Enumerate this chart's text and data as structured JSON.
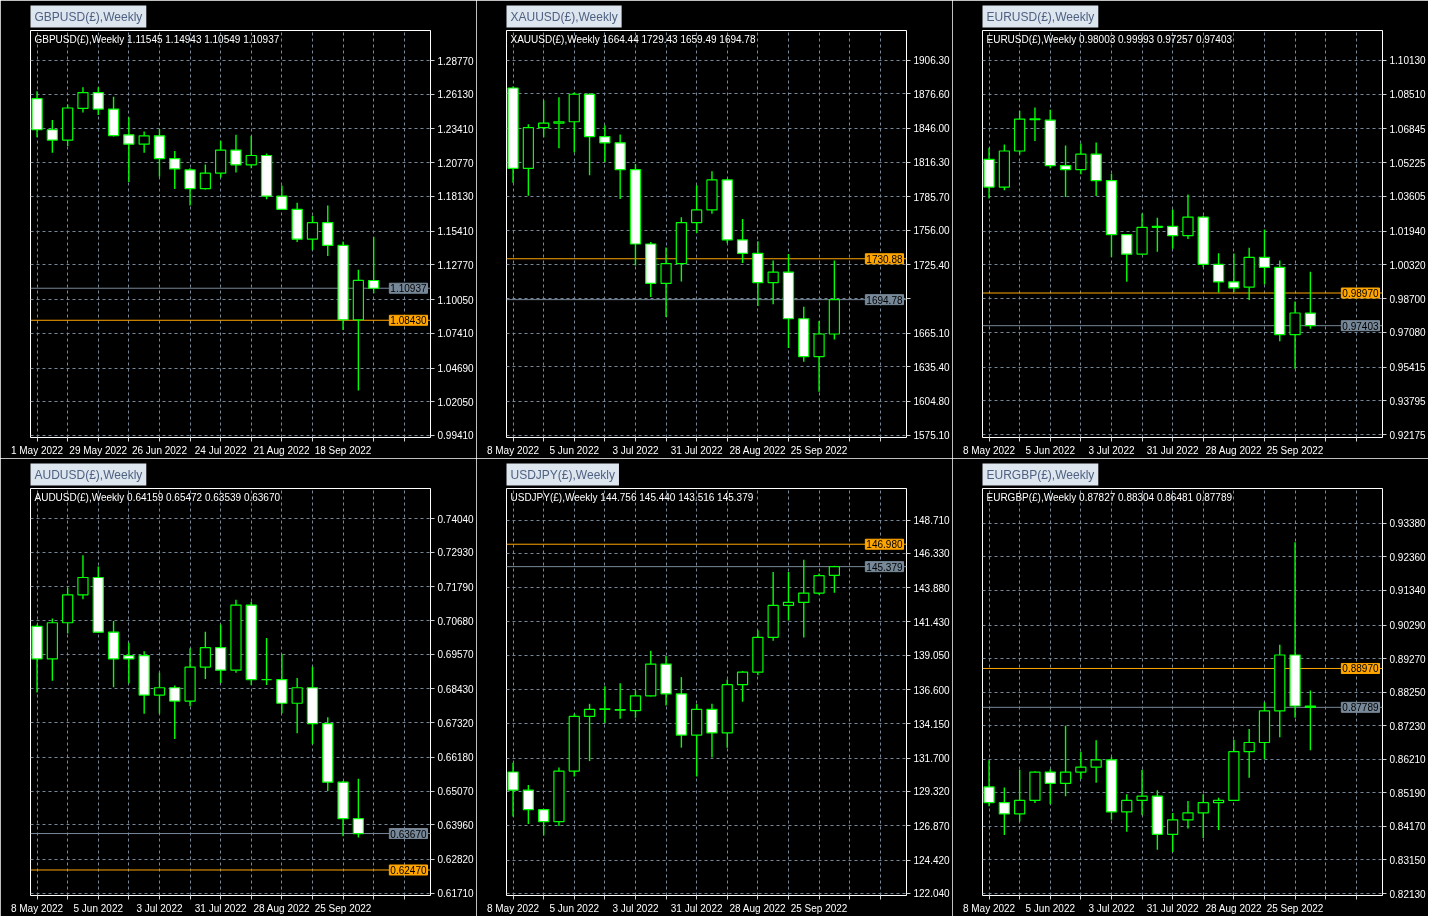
{
  "chart_data": [
    {
      "type": "candlestick",
      "title": "GBPUSD(£),Weekly",
      "subtitle": "GBPUSD(£),Weekly 1.11545 1.14943 1.10549 1.10937",
      "x": [
        "2022-05-01",
        "2022-05-08",
        "2022-05-15",
        "2022-05-22",
        "2022-05-29",
        "2022-06-05",
        "2022-06-12",
        "2022-06-19",
        "2022-06-26",
        "2022-07-03",
        "2022-07-10",
        "2022-07-17",
        "2022-07-24",
        "2022-07-31",
        "2022-08-07",
        "2022-08-14",
        "2022-08-21",
        "2022-08-28",
        "2022-09-04",
        "2022-09-11",
        "2022-09-18",
        "2022-09-25",
        "2022-10-02"
      ],
      "ohlc": [
        [
          1.2578,
          1.2637,
          1.2276,
          1.2335
        ],
        [
          1.2335,
          1.2411,
          1.2155,
          1.2254
        ],
        [
          1.2254,
          1.2532,
          1.2208,
          1.2505
        ],
        [
          1.2502,
          1.2667,
          1.247,
          1.2626
        ],
        [
          1.2626,
          1.2667,
          1.2451,
          1.2497
        ],
        [
          1.2497,
          1.2594,
          1.2281,
          1.2289
        ],
        [
          1.2295,
          1.2432,
          1.1925,
          1.2222
        ],
        [
          1.2222,
          1.2322,
          1.2155,
          1.2287
        ],
        [
          1.2287,
          1.234,
          1.1966,
          1.2109
        ],
        [
          1.2109,
          1.2168,
          1.1871,
          1.2028
        ],
        [
          1.202,
          1.2033,
          1.1742,
          1.1874
        ],
        [
          1.1874,
          1.2063,
          1.1866,
          1.1995
        ],
        [
          1.1995,
          1.2249,
          1.196,
          1.2176
        ],
        [
          1.2176,
          1.2295,
          1.2001,
          1.206
        ],
        [
          1.206,
          1.2287,
          1.2033,
          1.2133
        ],
        [
          1.2133,
          1.2149,
          1.1791,
          1.1815
        ],
        [
          1.1815,
          1.1898,
          1.1707,
          1.1712
        ],
        [
          1.1712,
          1.1764,
          1.1456,
          1.1478
        ],
        [
          1.1478,
          1.1661,
          1.1394,
          1.1607
        ],
        [
          1.1607,
          1.1742,
          1.1346,
          1.1429
        ],
        [
          1.1429,
          1.1459,
          1.0766,
          1.0847
        ],
        [
          1.0847,
          1.1238,
          1.0294,
          1.1155
        ],
        [
          1.11545,
          1.14943,
          1.10549,
          1.10937
        ]
      ],
      "color": "#00ff00",
      "colors": [
        "#ffffff",
        "#ffffff",
        "#000000",
        "#000000",
        "#ffffff",
        "#ffffff",
        "#ffffff",
        "#000000",
        "#ffffff",
        "#ffffff",
        "#ffffff",
        "#000000",
        "#000000",
        "#ffffff",
        "#000000",
        "#ffffff",
        "#ffffff",
        "#ffffff",
        "#000000",
        "#ffffff",
        "#ffffff",
        "#000000",
        "#ffffff"
      ],
      "xlim": [
        "2022-04-28",
        "2022-10-28"
      ],
      "xticks": [
        {
          "value": "2022-05-01",
          "label": "1 May 2022"
        },
        {
          "value": "2022-05-15",
          "label": null
        },
        {
          "value": "2022-05-29",
          "label": "29 May 2022"
        },
        {
          "value": "2022-06-12",
          "label": null
        },
        {
          "value": "2022-06-26",
          "label": "26 Jun 2022"
        },
        {
          "value": "2022-07-10",
          "label": null
        },
        {
          "value": "2022-07-24",
          "label": "24 Jul 2022"
        },
        {
          "value": "2022-08-07",
          "label": null
        },
        {
          "value": "2022-08-21",
          "label": "21 Aug 2022"
        },
        {
          "value": "2022-09-04",
          "label": null
        },
        {
          "value": "2022-09-18",
          "label": "18 Sep 2022"
        },
        {
          "value": "2022-10-02",
          "label": null
        },
        {
          "value": "2022-10-16",
          "label": null
        }
      ],
      "ylim": [
        0.9925,
        1.3112
      ],
      "yticks": [
        {
          "value": 1.2877,
          "label": "1.28770"
        },
        {
          "value": 1.2613,
          "label": "1.26130"
        },
        {
          "value": 1.2341,
          "label": "1.23410"
        },
        {
          "value": 1.2077,
          "label": "1.20770"
        },
        {
          "value": 1.1813,
          "label": "1.18130"
        },
        {
          "value": 1.1541,
          "label": "1.15410"
        },
        {
          "value": 1.1277,
          "label": "1.12770"
        },
        {
          "value": 1.1005,
          "label": "1.10050"
        },
        {
          "value": 1.0741,
          "label": "1.07410"
        },
        {
          "value": 1.0469,
          "label": "1.04690"
        },
        {
          "value": 1.0205,
          "label": "1.02050"
        },
        {
          "value": 0.9941,
          "label": "0.99410"
        }
      ],
      "grid": true,
      "ref_lines": [
        {
          "axis": "y",
          "value": 1.10937,
          "label": "1.10937",
          "color": "#778899"
        },
        {
          "axis": "y",
          "value": 1.0843,
          "label": "1.08430",
          "color": "#ffa500"
        }
      ]
    },
    {
      "type": "candlestick",
      "title": "XAUUSD(£),Weekly",
      "subtitle": "XAUUSD(£),Weekly 1664.44 1729.43 1659.49 1694.78",
      "x": [
        "2022-05-08",
        "2022-05-15",
        "2022-05-22",
        "2022-05-29",
        "2022-06-05",
        "2022-06-12",
        "2022-06-19",
        "2022-06-26",
        "2022-07-03",
        "2022-07-10",
        "2022-07-17",
        "2022-07-24",
        "2022-07-31",
        "2022-08-07",
        "2022-08-14",
        "2022-08-21",
        "2022-08-28",
        "2022-09-04",
        "2022-09-11",
        "2022-09-18",
        "2022-09-25",
        "2022-10-02"
      ],
      "ohlc": [
        [
          1881.7,
          1883.0,
          1798.0,
          1810.8
        ],
        [
          1810.8,
          1849.7,
          1786.5,
          1846.7
        ],
        [
          1846.7,
          1871.0,
          1838.2,
          1850.6
        ],
        [
          1850.6,
          1873.5,
          1828.4,
          1851.9
        ],
        [
          1851.9,
          1877.7,
          1824.8,
          1876.2
        ],
        [
          1876.2,
          1877.1,
          1804.7,
          1838.8
        ],
        [
          1838.8,
          1848.8,
          1816.3,
          1833.3
        ],
        [
          1833.3,
          1840.6,
          1783.7,
          1809.6
        ],
        [
          1809.6,
          1814.5,
          1725.0,
          1743.9
        ],
        [
          1743.9,
          1745.7,
          1697.1,
          1709.2
        ],
        [
          1709.2,
          1740.9,
          1679.4,
          1726.6
        ],
        [
          1726.6,
          1767.6,
          1710.7,
          1762.8
        ],
        [
          1762.8,
          1795.9,
          1753.6,
          1774.0
        ],
        [
          1774.0,
          1808.1,
          1770.7,
          1800.5
        ],
        [
          1800.5,
          1801.5,
          1744.5,
          1747.5
        ],
        [
          1747.5,
          1766.1,
          1727.2,
          1735.7
        ],
        [
          1735.7,
          1746.3,
          1689.2,
          1709.8
        ],
        [
          1709.8,
          1729.3,
          1690.7,
          1719.0
        ],
        [
          1719.0,
          1735.1,
          1652.1,
          1677.9
        ],
        [
          1677.9,
          1688.5,
          1639.9,
          1644.4
        ],
        [
          1644.4,
          1675.8,
          1613.4,
          1664.4
        ],
        [
          1664.44,
          1729.43,
          1659.49,
          1694.78
        ]
      ],
      "color": "#00ff00",
      "colors": [
        "#ffffff",
        "#000000",
        "#000000",
        "#000000",
        "#000000",
        "#ffffff",
        "#ffffff",
        "#ffffff",
        "#ffffff",
        "#ffffff",
        "#000000",
        "#000000",
        "#000000",
        "#000000",
        "#ffffff",
        "#ffffff",
        "#ffffff",
        "#000000",
        "#ffffff",
        "#ffffff",
        "#000000",
        "#000000"
      ],
      "xlim": [
        "2022-05-05",
        "2022-11-04"
      ],
      "xticks": [
        {
          "value": "2022-05-08",
          "label": "8 May 2022"
        },
        {
          "value": "2022-05-22",
          "label": null
        },
        {
          "value": "2022-06-05",
          "label": "5 Jun 2022"
        },
        {
          "value": "2022-06-19",
          "label": null
        },
        {
          "value": "2022-07-03",
          "label": "3 Jul 2022"
        },
        {
          "value": "2022-07-17",
          "label": null
        },
        {
          "value": "2022-07-31",
          "label": "31 Jul 2022"
        },
        {
          "value": "2022-08-14",
          "label": null
        },
        {
          "value": "2022-08-28",
          "label": "28 Aug 2022"
        },
        {
          "value": "2022-09-11",
          "label": null
        },
        {
          "value": "2022-09-25",
          "label": "25 Sep 2022"
        },
        {
          "value": "2022-10-09",
          "label": null
        },
        {
          "value": "2022-10-23",
          "label": null
        }
      ],
      "ylim": [
        1573.0,
        1932.5
      ],
      "yticks": [
        {
          "value": 1906.3,
          "label": "1906.30"
        },
        {
          "value": 1876.6,
          "label": "1876.60"
        },
        {
          "value": 1846.0,
          "label": "1846.00"
        },
        {
          "value": 1816.3,
          "label": "1816.30"
        },
        {
          "value": 1785.7,
          "label": "1785.70"
        },
        {
          "value": 1756.0,
          "label": "1756.00"
        },
        {
          "value": 1725.4,
          "label": "1725.40"
        },
        {
          "value": 1695.7,
          "label": null
        },
        {
          "value": 1665.1,
          "label": "1665.10"
        },
        {
          "value": 1635.4,
          "label": "1635.40"
        },
        {
          "value": 1604.8,
          "label": "1604.80"
        },
        {
          "value": 1575.1,
          "label": "1575.10"
        }
      ],
      "grid": true,
      "ref_lines": [
        {
          "axis": "y",
          "value": 1694.78,
          "label": "1694.78",
          "color": "#778899"
        },
        {
          "axis": "y",
          "value": 1730.88,
          "label": "1730.88",
          "color": "#ffa500"
        }
      ]
    },
    {
      "type": "candlestick",
      "title": "EURUSD(£),Weekly",
      "subtitle": "EURUSD(£),Weekly 0.98003 0.99993 0.97257 0.97403",
      "x": [
        "2022-05-08",
        "2022-05-15",
        "2022-05-22",
        "2022-05-29",
        "2022-06-05",
        "2022-06-12",
        "2022-06-19",
        "2022-06-26",
        "2022-07-03",
        "2022-07-10",
        "2022-07-17",
        "2022-07-24",
        "2022-07-31",
        "2022-08-07",
        "2022-08-14",
        "2022-08-21",
        "2022-08-28",
        "2022-09-04",
        "2022-09-11",
        "2022-09-18",
        "2022-09-25",
        "2022-10-02"
      ],
      "ohlc": [
        [
          1.0538,
          1.0594,
          1.035,
          1.0405
        ],
        [
          1.0405,
          1.0609,
          1.039,
          1.0578
        ],
        [
          1.0578,
          1.0771,
          1.0561,
          1.0731
        ],
        [
          1.0729,
          1.0787,
          1.0626,
          1.0732
        ],
        [
          1.0726,
          1.0776,
          1.0495,
          1.0508
        ],
        [
          1.0508,
          1.0604,
          1.0358,
          1.0489
        ],
        [
          1.0489,
          1.0614,
          1.0466,
          1.0563
        ],
        [
          1.0563,
          1.0619,
          1.0362,
          1.0436
        ],
        [
          1.0436,
          1.0469,
          1.007,
          1.0177
        ],
        [
          1.0177,
          1.018,
          0.9951,
          1.0083
        ],
        [
          1.0083,
          1.0278,
          1.008,
          1.0212
        ],
        [
          1.0212,
          1.0258,
          1.0095,
          1.0217
        ],
        [
          1.0217,
          1.0297,
          1.0109,
          1.0172
        ],
        [
          1.0172,
          1.037,
          1.0156,
          1.0261
        ],
        [
          1.0261,
          1.0268,
          1.002,
          1.0034
        ],
        [
          1.0034,
          1.0088,
          0.99,
          0.995
        ],
        [
          0.995,
          1.0086,
          0.9902,
          0.9922
        ],
        [
          0.9925,
          1.0114,
          0.9864,
          1.0068
        ],
        [
          1.0068,
          1.0202,
          0.9938,
          1.002
        ],
        [
          1.002,
          1.0053,
          0.9666,
          0.9697
        ],
        [
          0.9697,
          0.9856,
          0.9534,
          0.9801
        ],
        [
          0.98003,
          0.99993,
          0.97257,
          0.97403
        ]
      ],
      "color": "#00ff00",
      "colors": [
        "#ffffff",
        "#000000",
        "#000000",
        "#000000",
        "#ffffff",
        "#ffffff",
        "#000000",
        "#ffffff",
        "#ffffff",
        "#ffffff",
        "#000000",
        "#000000",
        "#ffffff",
        "#000000",
        "#ffffff",
        "#ffffff",
        "#ffffff",
        "#000000",
        "#ffffff",
        "#ffffff",
        "#000000",
        "#ffffff"
      ],
      "xlim": [
        "2022-05-05",
        "2022-11-04"
      ],
      "xticks": [
        {
          "value": "2022-05-08",
          "label": "8 May 2022"
        },
        {
          "value": "2022-05-22",
          "label": null
        },
        {
          "value": "2022-06-05",
          "label": "5 Jun 2022"
        },
        {
          "value": "2022-06-19",
          "label": null
        },
        {
          "value": "2022-07-03",
          "label": "3 Jul 2022"
        },
        {
          "value": "2022-07-17",
          "label": null
        },
        {
          "value": "2022-07-31",
          "label": "31 Jul 2022"
        },
        {
          "value": "2022-08-14",
          "label": null
        },
        {
          "value": "2022-08-28",
          "label": "28 Aug 2022"
        },
        {
          "value": "2022-09-11",
          "label": null
        },
        {
          "value": "2022-09-25",
          "label": "25 Sep 2022"
        },
        {
          "value": "2022-10-09",
          "label": null
        },
        {
          "value": "2022-10-23",
          "label": null
        }
      ],
      "ylim": [
        0.9204,
        1.1156
      ],
      "yticks": [
        {
          "value": 1.1013,
          "label": "1.10130"
        },
        {
          "value": 1.0851,
          "label": "1.08510"
        },
        {
          "value": 1.06845,
          "label": "1.06845"
        },
        {
          "value": 1.05225,
          "label": "1.05225"
        },
        {
          "value": 1.03605,
          "label": "1.03605"
        },
        {
          "value": 1.0194,
          "label": "1.01940"
        },
        {
          "value": 1.0032,
          "label": "1.00320"
        },
        {
          "value": 0.987,
          "label": "0.98700"
        },
        {
          "value": 0.9708,
          "label": "0.97080"
        },
        {
          "value": 0.95415,
          "label": "0.95415"
        },
        {
          "value": 0.93795,
          "label": "0.93795"
        },
        {
          "value": 0.92175,
          "label": "0.92175"
        }
      ],
      "grid": true,
      "ref_lines": [
        {
          "axis": "y",
          "value": 0.97403,
          "label": "0.97403",
          "color": "#778899"
        },
        {
          "axis": "y",
          "value": 0.9897,
          "label": "0.98970",
          "color": "#ffa500"
        }
      ]
    },
    {
      "type": "candlestick",
      "title": "AUDUSD(£),Weekly",
      "subtitle": "AUDUSD(£),Weekly 0.64159 0.65472 0.63539 0.63670",
      "x": [
        "2022-05-08",
        "2022-05-15",
        "2022-05-22",
        "2022-05-29",
        "2022-06-05",
        "2022-06-12",
        "2022-06-19",
        "2022-06-26",
        "2022-07-03",
        "2022-07-10",
        "2022-07-17",
        "2022-07-24",
        "2022-07-31",
        "2022-08-07",
        "2022-08-14",
        "2022-08-21",
        "2022-08-28",
        "2022-09-04",
        "2022-09-11",
        "2022-09-18",
        "2022-09-25",
        "2022-10-02"
      ],
      "ohlc": [
        [
          0.7049,
          0.7055,
          0.6831,
          0.6942
        ],
        [
          0.6942,
          0.7075,
          0.687,
          0.7061
        ],
        [
          0.7061,
          0.7176,
          0.7026,
          0.7153
        ],
        [
          0.7153,
          0.7283,
          0.7138,
          0.721
        ],
        [
          0.721,
          0.7246,
          0.7028,
          0.703
        ],
        [
          0.703,
          0.7067,
          0.6849,
          0.6942
        ],
        [
          0.6953,
          0.6995,
          0.6862,
          0.6942
        ],
        [
          0.6953,
          0.6967,
          0.6761,
          0.6823
        ],
        [
          0.6823,
          0.6896,
          0.6761,
          0.6847
        ],
        [
          0.6847,
          0.6854,
          0.6678,
          0.6803
        ],
        [
          0.6803,
          0.6977,
          0.6786,
          0.6915
        ],
        [
          0.6915,
          0.7031,
          0.6876,
          0.6979
        ],
        [
          0.6979,
          0.7055,
          0.6863,
          0.6905
        ],
        [
          0.6905,
          0.7137,
          0.6896,
          0.7119
        ],
        [
          0.7119,
          0.713,
          0.6856,
          0.6874
        ],
        [
          0.6874,
          0.7011,
          0.6856,
          0.6874
        ],
        [
          0.6874,
          0.6957,
          0.6763,
          0.6796
        ],
        [
          0.6796,
          0.6879,
          0.6697,
          0.6847
        ],
        [
          0.6847,
          0.6916,
          0.6661,
          0.6729
        ],
        [
          0.6729,
          0.675,
          0.6507,
          0.6536
        ],
        [
          0.6536,
          0.654,
          0.6358,
          0.6416
        ],
        [
          0.64159,
          0.65472,
          0.63539,
          0.6367
        ]
      ],
      "color": "#00ff00",
      "colors": [
        "#ffffff",
        "#000000",
        "#000000",
        "#000000",
        "#ffffff",
        "#ffffff",
        "#ffffff",
        "#ffffff",
        "#000000",
        "#ffffff",
        "#000000",
        "#000000",
        "#ffffff",
        "#000000",
        "#ffffff",
        "#00ff00",
        "#ffffff",
        "#000000",
        "#ffffff",
        "#ffffff",
        "#ffffff",
        "#ffffff"
      ],
      "xlim": [
        "2022-05-05",
        "2022-11-04"
      ],
      "xticks": [
        {
          "value": "2022-05-08",
          "label": "8 May 2022"
        },
        {
          "value": "2022-05-22",
          "label": null
        },
        {
          "value": "2022-06-05",
          "label": "5 Jun 2022"
        },
        {
          "value": "2022-06-19",
          "label": null
        },
        {
          "value": "2022-07-03",
          "label": "3 Jul 2022"
        },
        {
          "value": "2022-07-17",
          "label": null
        },
        {
          "value": "2022-07-31",
          "label": "31 Jul 2022"
        },
        {
          "value": "2022-08-14",
          "label": null
        },
        {
          "value": "2022-08-28",
          "label": "28 Aug 2022"
        },
        {
          "value": "2022-09-11",
          "label": null
        },
        {
          "value": "2022-09-25",
          "label": "25 Sep 2022"
        },
        {
          "value": "2022-10-09",
          "label": null
        },
        {
          "value": "2022-10-23",
          "label": null
        }
      ],
      "ylim": [
        0.6163,
        0.7503
      ],
      "yticks": [
        {
          "value": 0.7404,
          "label": "0.74040"
        },
        {
          "value": 0.7293,
          "label": "0.72930"
        },
        {
          "value": 0.7179,
          "label": "0.71790"
        },
        {
          "value": 0.7068,
          "label": "0.70680"
        },
        {
          "value": 0.6957,
          "label": "0.69570"
        },
        {
          "value": 0.6843,
          "label": "0.68430"
        },
        {
          "value": 0.6732,
          "label": "0.67320"
        },
        {
          "value": 0.6618,
          "label": "0.66180"
        },
        {
          "value": 0.6507,
          "label": "0.65070"
        },
        {
          "value": 0.6396,
          "label": "0.63960"
        },
        {
          "value": 0.6282,
          "label": "0.62820"
        },
        {
          "value": 0.6171,
          "label": "0.61710"
        }
      ],
      "grid": true,
      "ref_lines": [
        {
          "axis": "y",
          "value": 0.6367,
          "label": "0.63670",
          "color": "#778899"
        },
        {
          "axis": "y",
          "value": 0.6247,
          "label": "0.62470",
          "color": "#ffa500"
        }
      ]
    },
    {
      "type": "candlestick",
      "title": "USDJPY(£),Weekly",
      "subtitle": "USDJPY(£),Weekly 144.756 145.440 143.516 145.379",
      "x": [
        "2022-05-08",
        "2022-05-15",
        "2022-05-22",
        "2022-05-29",
        "2022-06-05",
        "2022-06-12",
        "2022-06-19",
        "2022-06-26",
        "2022-07-03",
        "2022-07-10",
        "2022-07-17",
        "2022-07-24",
        "2022-07-31",
        "2022-08-07",
        "2022-08-14",
        "2022-08-21",
        "2022-08-28",
        "2022-09-04",
        "2022-09-11",
        "2022-09-18",
        "2022-09-25",
        "2022-10-02"
      ],
      "ohlc": [
        [
          130.71,
          131.37,
          127.53,
          129.41
        ],
        [
          129.41,
          129.78,
          126.99,
          128.02
        ],
        [
          128.02,
          128.09,
          126.18,
          127.16
        ],
        [
          127.16,
          131.03,
          126.86,
          130.78
        ],
        [
          130.78,
          134.87,
          130.39,
          134.68
        ],
        [
          134.68,
          135.58,
          131.49,
          135.19
        ],
        [
          135.19,
          136.83,
          134.21,
          135.22
        ],
        [
          135.17,
          137.05,
          134.51,
          135.13
        ],
        [
          135.09,
          136.54,
          134.58,
          136.15
        ],
        [
          136.15,
          139.38,
          136.1,
          138.42
        ],
        [
          138.42,
          138.99,
          135.46,
          136.29
        ],
        [
          136.29,
          137.49,
          132.45,
          133.35
        ],
        [
          133.35,
          135.56,
          130.39,
          135.19
        ],
        [
          135.19,
          135.58,
          131.74,
          133.5
        ],
        [
          133.5,
          137.32,
          132.45,
          136.95
        ],
        [
          136.95,
          137.93,
          135.73,
          137.84
        ],
        [
          137.84,
          140.82,
          137.62,
          140.33
        ],
        [
          140.33,
          144.99,
          140.09,
          142.61
        ],
        [
          142.61,
          144.99,
          141.53,
          142.83
        ],
        [
          142.83,
          145.87,
          140.31,
          143.49
        ],
        [
          143.49,
          144.89,
          143.37,
          144.74
        ],
        [
          144.756,
          145.44,
          143.516,
          145.379
        ]
      ],
      "color": "#00ff00",
      "colors": [
        "#ffffff",
        "#ffffff",
        "#ffffff",
        "#000000",
        "#000000",
        "#000000",
        "#000000",
        "#ffffff",
        "#000000",
        "#000000",
        "#ffffff",
        "#ffffff",
        "#000000",
        "#ffffff",
        "#000000",
        "#000000",
        "#000000",
        "#000000",
        "#000000",
        "#000000",
        "#000000",
        "#000000"
      ],
      "xlim": [
        "2022-05-05",
        "2022-11-04"
      ],
      "xticks": [
        {
          "value": "2022-05-08",
          "label": "8 May 2022"
        },
        {
          "value": "2022-05-22",
          "label": null
        },
        {
          "value": "2022-06-05",
          "label": "5 Jun 2022"
        },
        {
          "value": "2022-06-19",
          "label": null
        },
        {
          "value": "2022-07-03",
          "label": "3 Jul 2022"
        },
        {
          "value": "2022-07-17",
          "label": null
        },
        {
          "value": "2022-07-31",
          "label": "31 Jul 2022"
        },
        {
          "value": "2022-08-14",
          "label": null
        },
        {
          "value": "2022-08-28",
          "label": "28 Aug 2022"
        },
        {
          "value": "2022-09-11",
          "label": null
        },
        {
          "value": "2022-09-25",
          "label": "25 Sep 2022"
        },
        {
          "value": "2022-10-09",
          "label": null
        },
        {
          "value": "2022-10-23",
          "label": null
        }
      ],
      "ylim": [
        121.89,
        150.96
      ],
      "yticks": [
        {
          "value": 148.71,
          "label": "148.710"
        },
        {
          "value": 146.33,
          "label": "146.330"
        },
        {
          "value": 143.88,
          "label": "143.880"
        },
        {
          "value": 141.43,
          "label": "141.430"
        },
        {
          "value": 139.05,
          "label": "139.050"
        },
        {
          "value": 136.6,
          "label": "136.600"
        },
        {
          "value": 134.15,
          "label": "134.150"
        },
        {
          "value": 131.7,
          "label": "131.700"
        },
        {
          "value": 129.32,
          "label": "129.320"
        },
        {
          "value": 126.87,
          "label": "126.870"
        },
        {
          "value": 124.42,
          "label": "124.420"
        },
        {
          "value": 122.04,
          "label": "122.040"
        }
      ],
      "grid": true,
      "ref_lines": [
        {
          "axis": "y",
          "value": 145.379,
          "label": "145.379",
          "color": "#778899"
        },
        {
          "axis": "y",
          "value": 146.98,
          "label": "146.980",
          "color": "#ffa500"
        }
      ]
    },
    {
      "type": "candlestick",
      "title": "EURGBP(£),Weekly",
      "subtitle": "EURGBP(£),Weekly 0.87827 0.88304 0.86481 0.87789",
      "x": [
        "2022-05-08",
        "2022-05-15",
        "2022-05-22",
        "2022-05-29",
        "2022-06-05",
        "2022-06-12",
        "2022-06-19",
        "2022-06-26",
        "2022-07-03",
        "2022-07-10",
        "2022-07-17",
        "2022-07-24",
        "2022-07-31",
        "2022-08-07",
        "2022-08-14",
        "2022-08-21",
        "2022-08-28",
        "2022-09-04",
        "2022-09-11",
        "2022-09-18",
        "2022-09-25",
        "2022-10-02"
      ],
      "ohlc": [
        [
          0.8537,
          0.8618,
          0.8478,
          0.8489
        ],
        [
          0.8489,
          0.8535,
          0.8391,
          0.8455
        ],
        [
          0.8455,
          0.8589,
          0.8432,
          0.8496
        ],
        [
          0.8496,
          0.8585,
          0.8488,
          0.8582
        ],
        [
          0.8582,
          0.8591,
          0.8484,
          0.8548
        ],
        [
          0.8548,
          0.8723,
          0.8509,
          0.8582
        ],
        [
          0.8582,
          0.8644,
          0.8561,
          0.8597
        ],
        [
          0.8597,
          0.8679,
          0.855,
          0.8619
        ],
        [
          0.8619,
          0.8628,
          0.8437,
          0.8461
        ],
        [
          0.8461,
          0.8515,
          0.8401,
          0.8496
        ],
        [
          0.8496,
          0.8589,
          0.8451,
          0.8509
        ],
        [
          0.8509,
          0.8527,
          0.8346,
          0.8393
        ],
        [
          0.8393,
          0.8458,
          0.8339,
          0.8437
        ],
        [
          0.8437,
          0.8494,
          0.8411,
          0.8458
        ],
        [
          0.8458,
          0.8515,
          0.8382,
          0.8489
        ],
        [
          0.8489,
          0.8504,
          0.8406,
          0.8496
        ],
        [
          0.8496,
          0.868,
          0.8494,
          0.8644
        ],
        [
          0.8644,
          0.8713,
          0.8565,
          0.8672
        ],
        [
          0.8672,
          0.8794,
          0.8621,
          0.8768
        ],
        [
          0.8768,
          0.8969,
          0.8688,
          0.8938
        ],
        [
          0.8938,
          0.9281,
          0.8747,
          0.8783
        ],
        [
          0.87827,
          0.88304,
          0.86481,
          0.87789
        ]
      ],
      "color": "#00ff00",
      "colors": [
        "#ffffff",
        "#ffffff",
        "#000000",
        "#000000",
        "#ffffff",
        "#000000",
        "#000000",
        "#000000",
        "#ffffff",
        "#000000",
        "#000000",
        "#ffffff",
        "#000000",
        "#000000",
        "#000000",
        "#000000",
        "#000000",
        "#000000",
        "#000000",
        "#000000",
        "#ffffff",
        "#ffffff"
      ],
      "xlim": [
        "2022-05-05",
        "2022-11-04"
      ],
      "xticks": [
        {
          "value": "2022-05-08",
          "label": "8 May 2022"
        },
        {
          "value": "2022-05-22",
          "label": null
        },
        {
          "value": "2022-06-05",
          "label": "5 Jun 2022"
        },
        {
          "value": "2022-06-19",
          "label": null
        },
        {
          "value": "2022-07-03",
          "label": "3 Jul 2022"
        },
        {
          "value": "2022-07-17",
          "label": null
        },
        {
          "value": "2022-07-31",
          "label": "31 Jul 2022"
        },
        {
          "value": "2022-08-14",
          "label": null
        },
        {
          "value": "2022-08-28",
          "label": "28 Aug 2022"
        },
        {
          "value": "2022-09-11",
          "label": null
        },
        {
          "value": "2022-09-25",
          "label": "25 Sep 2022"
        },
        {
          "value": "2022-10-09",
          "label": null
        },
        {
          "value": "2022-10-23",
          "label": null
        }
      ],
      "ylim": [
        0.8207,
        0.9444
      ],
      "yticks": [
        {
          "value": 0.9338,
          "label": "0.93380"
        },
        {
          "value": 0.9236,
          "label": "0.92360"
        },
        {
          "value": 0.9134,
          "label": "0.91340"
        },
        {
          "value": 0.9029,
          "label": "0.90290"
        },
        {
          "value": 0.8927,
          "label": "0.89270"
        },
        {
          "value": 0.8825,
          "label": "0.88250"
        },
        {
          "value": 0.8723,
          "label": "0.87230"
        },
        {
          "value": 0.8621,
          "label": "0.86210"
        },
        {
          "value": 0.8519,
          "label": "0.85190"
        },
        {
          "value": 0.8417,
          "label": "0.84170"
        },
        {
          "value": 0.8315,
          "label": "0.83150"
        },
        {
          "value": 0.8213,
          "label": "0.82130"
        }
      ],
      "grid": true,
      "ref_lines": [
        {
          "axis": "y",
          "value": 0.87789,
          "label": "0.87789",
          "color": "#778899"
        },
        {
          "axis": "y",
          "value": 0.8897,
          "label": "0.88970",
          "color": "#ffa500"
        }
      ]
    }
  ]
}
